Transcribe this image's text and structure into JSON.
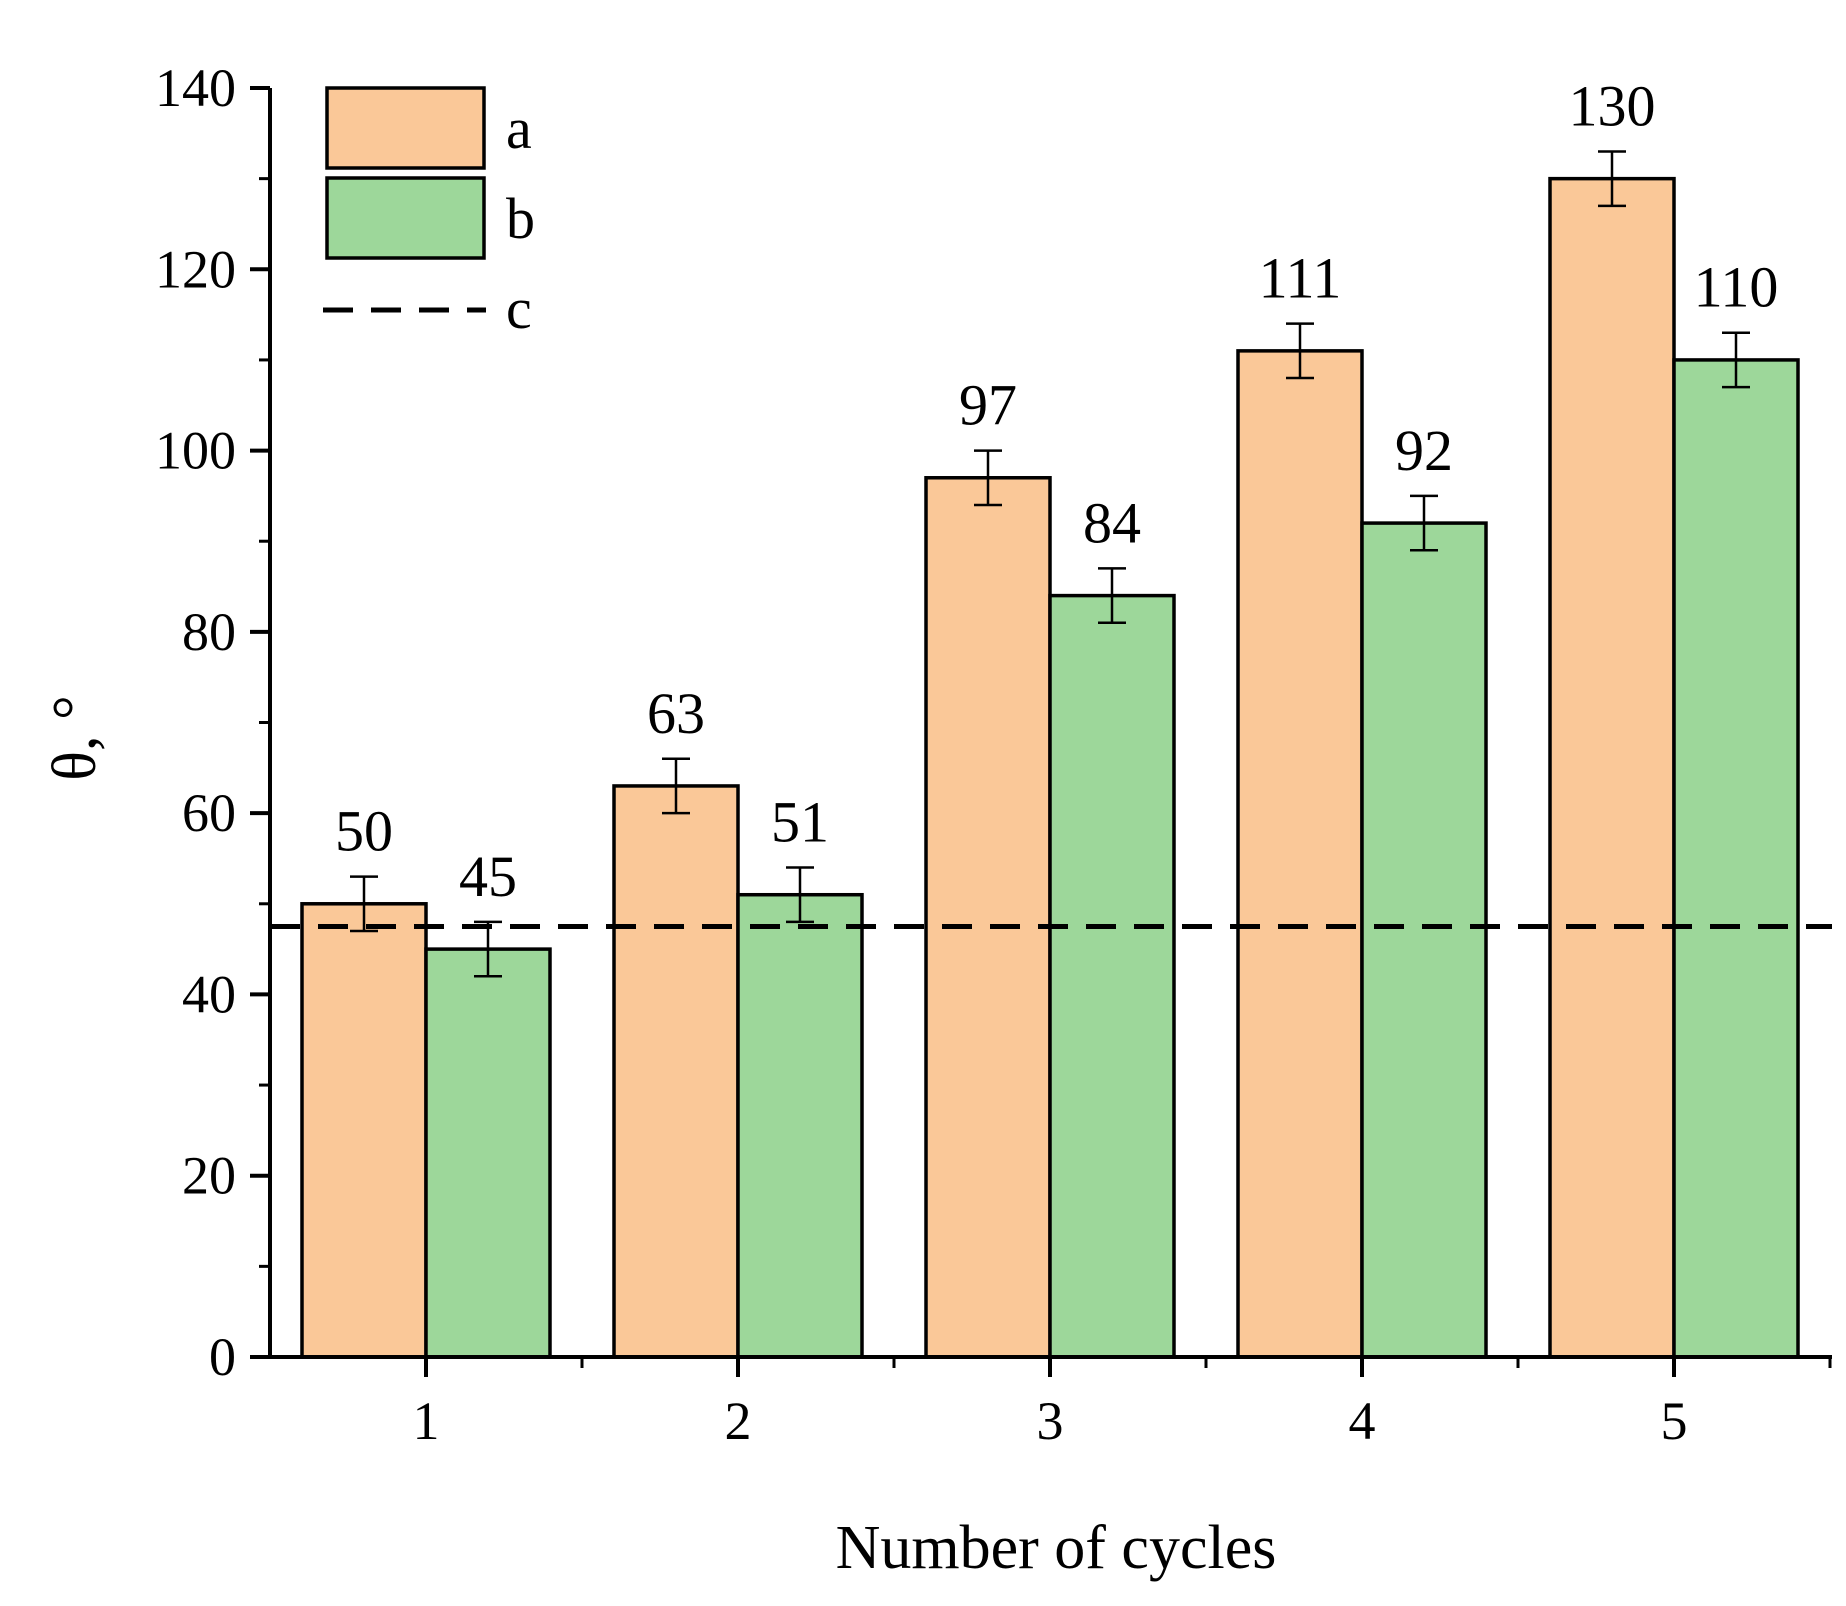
{
  "chart_data": {
    "type": "bar",
    "title": "",
    "xlabel": "Number of cycles",
    "ylabel": "θ, °",
    "categories": [
      "1",
      "2",
      "3",
      "4",
      "5"
    ],
    "series": [
      {
        "name": "a",
        "color": "#FAC898",
        "values": [
          50,
          63,
          97,
          111,
          130
        ],
        "errors": [
          3,
          3,
          3,
          3,
          3
        ]
      },
      {
        "name": "b",
        "color": "#9DD79A",
        "values": [
          45,
          51,
          84,
          92,
          110
        ],
        "errors": [
          3,
          3,
          3,
          3,
          3
        ]
      }
    ],
    "reference_line": {
      "name": "c",
      "value": 47.5,
      "style": "dashed",
      "color": "#000000"
    },
    "data_labels": [
      [
        "50",
        "63",
        "97",
        "111",
        "130"
      ],
      [
        "45",
        "51",
        "84",
        "92",
        "110"
      ]
    ],
    "ylim": [
      0,
      140
    ],
    "yticks": [
      0,
      20,
      40,
      60,
      80,
      100,
      120,
      140
    ],
    "ytick_labels": [
      "0",
      "20",
      "40",
      "60",
      "80",
      "100",
      "120",
      "140"
    ],
    "grid": false,
    "legend_position": "top-left"
  }
}
